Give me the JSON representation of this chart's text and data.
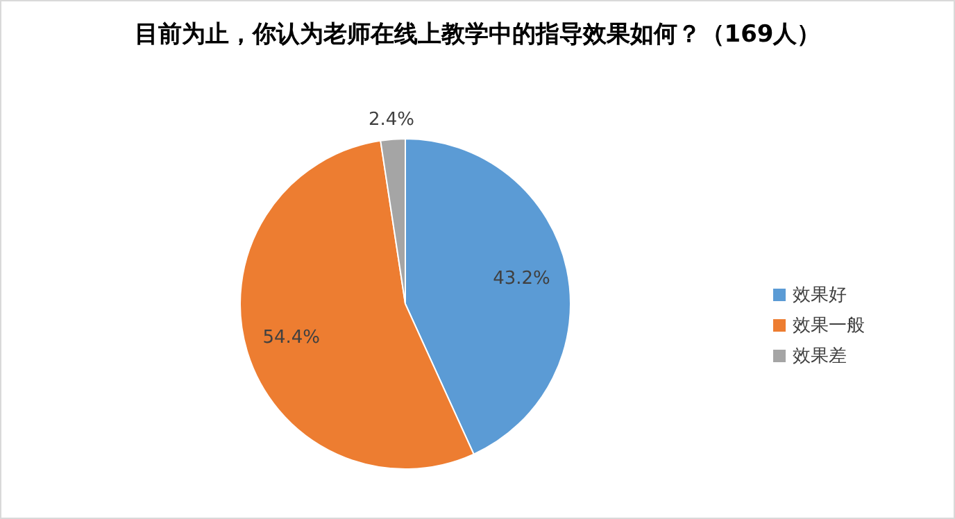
{
  "chart_data": {
    "type": "pie",
    "title": "目前为止，你认为老师在线上教学中的指导效果如何？（169人）",
    "categories": [
      "效果好",
      "效果一般",
      "效果差"
    ],
    "values": [
      43.2,
      54.4,
      2.4
    ],
    "colors": [
      "#5b9bd5",
      "#ed7d31",
      "#a5a5a5"
    ],
    "value_labels": [
      "43.2%",
      "54.4%",
      "2.4%"
    ],
    "legend": "right"
  }
}
